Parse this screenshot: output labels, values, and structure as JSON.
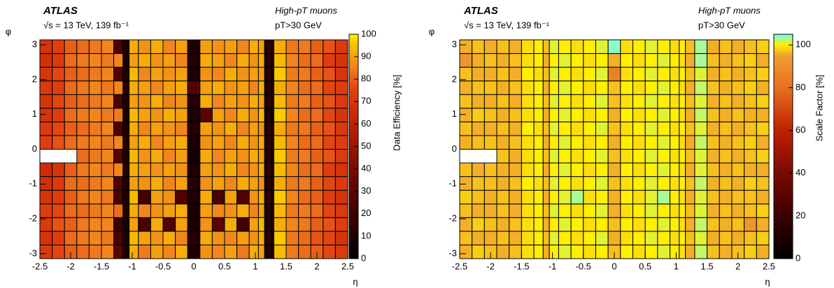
{
  "chart_data": [
    {
      "type": "heatmap",
      "title": "ATLAS",
      "subtitle": "√s = 13 TeV, 139 fb⁻¹",
      "annotations": [
        "High-pT muons",
        "pT>30 GeV"
      ],
      "x_label": "η",
      "y_label": "φ",
      "colorbar_label": "Data Efficiency [%]",
      "x_bins": [
        -2.5,
        -2.3,
        -2.1,
        -1.9,
        -1.7,
        -1.5,
        -1.3,
        -1.15,
        -1.05,
        -0.9,
        -0.7,
        -0.5,
        -0.3,
        -0.1,
        0.1,
        0.3,
        0.5,
        0.7,
        0.9,
        1.05,
        1.15,
        1.3,
        1.5,
        1.7,
        1.9,
        2.1,
        2.3,
        2.5
      ],
      "y_bins": [
        -3.142,
        -2.749,
        -2.356,
        -1.963,
        -1.571,
        -1.178,
        -0.785,
        -0.393,
        0,
        0.393,
        0.785,
        1.178,
        1.571,
        1.963,
        2.356,
        2.749,
        3.142
      ],
      "z": [
        [
          72,
          76,
          80,
          82,
          84,
          86,
          30,
          10,
          92,
          84,
          90,
          86,
          92,
          10,
          88,
          86,
          90,
          84,
          92,
          90,
          10,
          94,
          84,
          82,
          80,
          76,
          72
        ],
        [
          70,
          74,
          82,
          84,
          86,
          84,
          25,
          10,
          94,
          90,
          88,
          92,
          86,
          12,
          92,
          88,
          86,
          90,
          88,
          92,
          12,
          96,
          84,
          82,
          78,
          76,
          70
        ],
        [
          72,
          78,
          80,
          84,
          86,
          86,
          20,
          8,
          90,
          24,
          92,
          26,
          90,
          10,
          88,
          30,
          92,
          22,
          90,
          94,
          10,
          92,
          86,
          84,
          80,
          78,
          74
        ],
        [
          74,
          76,
          82,
          82,
          84,
          86,
          82,
          12,
          92,
          86,
          88,
          90,
          92,
          8,
          90,
          86,
          88,
          92,
          86,
          90,
          8,
          94,
          84,
          84,
          82,
          76,
          72
        ],
        [
          70,
          74,
          80,
          84,
          86,
          84,
          24,
          10,
          94,
          22,
          90,
          88,
          26,
          10,
          92,
          24,
          90,
          26,
          88,
          92,
          12,
          96,
          86,
          82,
          80,
          74,
          70
        ],
        [
          68,
          72,
          82,
          82,
          84,
          86,
          26,
          10,
          90,
          88,
          92,
          86,
          90,
          12,
          88,
          90,
          86,
          92,
          90,
          88,
          10,
          92,
          84,
          84,
          80,
          76,
          72
        ],
        [
          66,
          70,
          80,
          84,
          86,
          84,
          86,
          12,
          92,
          90,
          88,
          90,
          88,
          10,
          90,
          88,
          92,
          86,
          88,
          92,
          12,
          94,
          86,
          82,
          82,
          74,
          70
        ],
        [
          null,
          null,
          null,
          82,
          84,
          86,
          28,
          10,
          94,
          88,
          92,
          86,
          90,
          8,
          92,
          86,
          90,
          88,
          92,
          90,
          10,
          96,
          84,
          84,
          80,
          78,
          72
        ],
        [
          74,
          78,
          82,
          84,
          86,
          84,
          86,
          12,
          90,
          92,
          86,
          90,
          92,
          10,
          88,
          90,
          86,
          92,
          88,
          92,
          12,
          94,
          86,
          82,
          82,
          76,
          74
        ],
        [
          72,
          76,
          80,
          82,
          84,
          86,
          26,
          10,
          92,
          86,
          90,
          88,
          86,
          12,
          90,
          88,
          92,
          86,
          90,
          88,
          10,
          92,
          84,
          84,
          80,
          78,
          72
        ],
        [
          70,
          74,
          82,
          84,
          86,
          84,
          84,
          8,
          94,
          90,
          88,
          92,
          90,
          10,
          30,
          90,
          86,
          92,
          88,
          94,
          8,
          96,
          86,
          82,
          82,
          76,
          70
        ],
        [
          70,
          76,
          80,
          82,
          84,
          86,
          24,
          10,
          90,
          88,
          92,
          86,
          88,
          12,
          92,
          86,
          90,
          88,
          92,
          90,
          12,
          94,
          84,
          84,
          80,
          78,
          72
        ],
        [
          72,
          74,
          82,
          84,
          86,
          84,
          86,
          12,
          92,
          90,
          86,
          90,
          92,
          28,
          90,
          92,
          88,
          90,
          86,
          92,
          10,
          92,
          86,
          82,
          82,
          76,
          74
        ],
        [
          70,
          76,
          80,
          82,
          84,
          86,
          26,
          10,
          94,
          86,
          90,
          88,
          90,
          10,
          88,
          86,
          92,
          88,
          90,
          90,
          12,
          96,
          84,
          84,
          80,
          78,
          70
        ],
        [
          68,
          72,
          82,
          84,
          86,
          84,
          86,
          8,
          90,
          92,
          88,
          90,
          86,
          12,
          92,
          90,
          86,
          92,
          88,
          92,
          10,
          94,
          86,
          82,
          82,
          74,
          70
        ],
        [
          70,
          74,
          80,
          82,
          84,
          86,
          24,
          10,
          92,
          88,
          92,
          86,
          90,
          10,
          90,
          88,
          90,
          86,
          92,
          90,
          12,
          92,
          84,
          84,
          80,
          78,
          72
        ]
      ],
      "xlim": [
        -2.5,
        2.5
      ],
      "ylim": [
        -3.142,
        3.142
      ],
      "xticks": [
        -2.5,
        -2,
        -1.5,
        -1,
        -0.5,
        0,
        0.5,
        1,
        1.5,
        2,
        2.5
      ],
      "yticks": [
        -3,
        -2,
        -1,
        0,
        1,
        2,
        3
      ],
      "zlim": [
        0,
        100
      ],
      "zticks": [
        0,
        10,
        20,
        30,
        40,
        50,
        60,
        70,
        80,
        90,
        100
      ],
      "color_stops": [
        {
          "value": 0,
          "color": "#000000"
        },
        {
          "value": 20,
          "color": "#3c0000"
        },
        {
          "value": 40,
          "color": "#7a0a00"
        },
        {
          "value": 60,
          "color": "#c02000"
        },
        {
          "value": 75,
          "color": "#e04010"
        },
        {
          "value": 85,
          "color": "#f08020"
        },
        {
          "value": 95,
          "color": "#f8c000"
        },
        {
          "value": 100,
          "color": "#fff000"
        }
      ]
    },
    {
      "type": "heatmap",
      "title": "ATLAS",
      "subtitle": "√s = 13 TeV, 139 fb⁻¹",
      "annotations": [
        "High-pT muons",
        "pT>30 GeV"
      ],
      "x_label": "η",
      "y_label": "φ",
      "colorbar_label": "Scale Factor [%]",
      "x_bins": [
        -2.5,
        -2.3,
        -2.1,
        -1.9,
        -1.7,
        -1.5,
        -1.3,
        -1.15,
        -1.05,
        -0.9,
        -0.7,
        -0.5,
        -0.3,
        -0.1,
        0.1,
        0.3,
        0.5,
        0.7,
        0.9,
        1.05,
        1.15,
        1.3,
        1.5,
        1.7,
        1.9,
        2.1,
        2.3,
        2.5
      ],
      "y_bins": [
        -3.142,
        -2.749,
        -2.356,
        -1.963,
        -1.571,
        -1.178,
        -0.785,
        -0.393,
        0,
        0.393,
        0.785,
        1.178,
        1.571,
        1.963,
        2.356,
        2.749,
        3.142
      ],
      "z": [
        [
          96,
          98,
          97,
          96,
          97,
          99,
          100,
          96,
          100,
          101,
          100,
          99,
          100,
          97,
          100,
          99,
          100,
          101,
          100,
          99,
          96,
          102,
          97,
          96,
          97,
          98,
          96
        ],
        [
          97,
          96,
          96,
          97,
          96,
          99,
          100,
          97,
          101,
          100,
          99,
          100,
          101,
          96,
          99,
          100,
          101,
          100,
          99,
          100,
          97,
          101,
          96,
          97,
          96,
          97,
          98
        ],
        [
          96,
          98,
          97,
          96,
          97,
          99,
          100,
          96,
          100,
          101,
          100,
          99,
          100,
          97,
          100,
          99,
          100,
          101,
          100,
          99,
          96,
          102,
          97,
          96,
          97,
          92,
          96
        ],
        [
          97,
          96,
          96,
          97,
          96,
          99,
          100,
          97,
          101,
          100,
          99,
          100,
          101,
          96,
          99,
          100,
          101,
          100,
          99,
          100,
          97,
          101,
          96,
          97,
          96,
          97,
          98
        ],
        [
          98,
          97,
          96,
          97,
          96,
          99,
          100,
          96,
          100,
          101,
          103,
          99,
          100,
          96,
          100,
          99,
          101,
          103,
          100,
          99,
          96,
          101,
          97,
          96,
          97,
          97,
          96
        ],
        [
          96,
          97,
          97,
          96,
          97,
          100,
          99,
          97,
          101,
          100,
          99,
          100,
          101,
          97,
          99,
          100,
          101,
          100,
          99,
          100,
          97,
          102,
          96,
          97,
          96,
          98,
          97
        ],
        [
          97,
          96,
          97,
          96,
          96,
          99,
          100,
          96,
          100,
          101,
          100,
          99,
          100,
          96,
          100,
          99,
          100,
          101,
          100,
          99,
          96,
          101,
          97,
          96,
          97,
          96,
          96
        ],
        [
          null,
          null,
          null,
          97,
          96,
          99,
          100,
          97,
          101,
          100,
          99,
          100,
          101,
          97,
          99,
          100,
          101,
          100,
          99,
          100,
          97,
          101,
          96,
          97,
          96,
          97,
          98
        ],
        [
          96,
          97,
          97,
          96,
          97,
          99,
          100,
          96,
          100,
          101,
          100,
          99,
          100,
          96,
          100,
          99,
          100,
          101,
          100,
          99,
          96,
          102,
          97,
          96,
          97,
          98,
          96
        ],
        [
          97,
          96,
          96,
          97,
          96,
          100,
          99,
          97,
          101,
          100,
          99,
          100,
          101,
          97,
          99,
          100,
          101,
          100,
          99,
          100,
          97,
          101,
          96,
          97,
          96,
          97,
          98
        ],
        [
          96,
          98,
          97,
          96,
          97,
          99,
          100,
          96,
          100,
          101,
          100,
          99,
          100,
          96,
          100,
          99,
          100,
          101,
          100,
          99,
          96,
          102,
          97,
          96,
          97,
          96,
          96
        ],
        [
          97,
          96,
          96,
          97,
          96,
          99,
          100,
          97,
          101,
          100,
          99,
          100,
          101,
          97,
          99,
          100,
          101,
          100,
          99,
          100,
          97,
          101,
          96,
          97,
          96,
          97,
          98
        ],
        [
          96,
          97,
          97,
          96,
          97,
          99,
          100,
          96,
          100,
          101,
          100,
          99,
          100,
          97,
          100,
          99,
          100,
          101,
          100,
          99,
          96,
          102,
          97,
          96,
          97,
          98,
          96
        ],
        [
          97,
          96,
          96,
          97,
          96,
          100,
          99,
          97,
          101,
          100,
          99,
          100,
          101,
          86,
          99,
          100,
          101,
          100,
          99,
          100,
          97,
          101,
          96,
          97,
          96,
          97,
          98
        ],
        [
          92,
          96,
          97,
          96,
          97,
          99,
          100,
          96,
          100,
          101,
          100,
          99,
          100,
          96,
          100,
          99,
          100,
          101,
          100,
          99,
          96,
          103,
          97,
          96,
          97,
          98,
          96
        ],
        [
          96,
          97,
          96,
          97,
          96,
          99,
          100,
          97,
          101,
          100,
          99,
          100,
          101,
          104,
          99,
          100,
          101,
          100,
          99,
          100,
          97,
          103,
          96,
          97,
          96,
          97,
          98
        ]
      ],
      "xlim": [
        -2.5,
        2.5
      ],
      "ylim": [
        -3.142,
        3.142
      ],
      "xticks": [
        -2.5,
        -2,
        -1.5,
        -1,
        -0.5,
        0,
        0.5,
        1,
        1.5,
        2,
        2.5
      ],
      "yticks": [
        -3,
        -2,
        -1,
        0,
        1,
        2,
        3
      ],
      "zlim": [
        0,
        105
      ],
      "zticks": [
        0,
        20,
        40,
        60,
        80,
        100
      ],
      "color_stops": [
        {
          "value": 0,
          "color": "#000000"
        },
        {
          "value": 20,
          "color": "#3c0000"
        },
        {
          "value": 40,
          "color": "#7a0a00"
        },
        {
          "value": 60,
          "color": "#c02000"
        },
        {
          "value": 80,
          "color": "#e87020"
        },
        {
          "value": 95,
          "color": "#f0a030"
        },
        {
          "value": 100,
          "color": "#ffef00"
        },
        {
          "value": 105,
          "color": "#70ffff"
        }
      ]
    }
  ]
}
